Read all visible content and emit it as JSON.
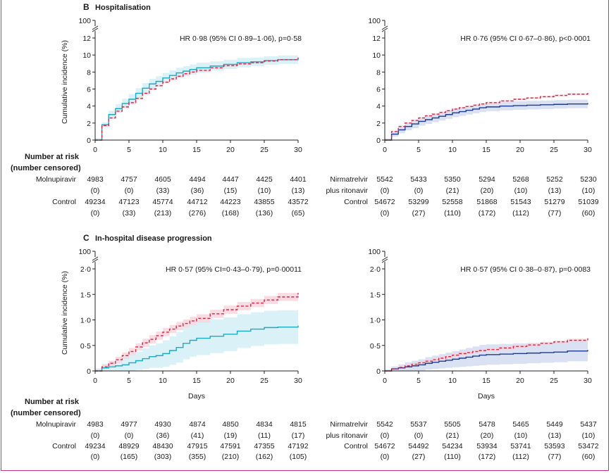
{
  "colors": {
    "molnupiravir": "#1aaac4",
    "nirmatrelvir": "#1f3b8f",
    "control": "#d42a45",
    "molnupiravir_band": "#cfedf5",
    "nirmatrelvir_band": "#cfd9ef",
    "control_band": "#f7d2dc",
    "frame": "#c2338a"
  },
  "shared": {
    "ylabel": "Cumulative incidence (%)",
    "xlabel": "Days",
    "risk_title_line1": "Number at risk",
    "risk_title_line2": "(number censored)"
  },
  "chart_data": [
    {
      "id": "B_left",
      "panel_label": "B",
      "panel_title": "Hospitalisation",
      "type": "line",
      "hr_text": "HR 0·98 (95% CI 0·89–1·06), p=0·58",
      "xlim": [
        0,
        30
      ],
      "ylim": [
        0,
        12
      ],
      "x_ticks": [
        "0",
        "5",
        "10",
        "15",
        "20",
        "25",
        "30"
      ],
      "y_ticks": [
        "0",
        "2",
        "4",
        "6",
        "8",
        "10",
        "12"
      ],
      "y_break_label": "100",
      "series": [
        {
          "name": "Molnupiravir",
          "style": "solid",
          "color_key": "molnupiravir",
          "x": [
            0,
            1,
            2,
            3,
            4,
            5,
            6,
            7,
            8,
            9,
            10,
            11,
            12,
            13,
            14,
            15,
            17,
            19,
            21,
            23,
            25,
            27,
            30
          ],
          "y": [
            0,
            1.8,
            3.0,
            3.7,
            4.3,
            4.8,
            5.5,
            6.1,
            6.6,
            6.9,
            7.3,
            7.6,
            7.9,
            8.1,
            8.3,
            8.5,
            8.7,
            8.9,
            9.1,
            9.2,
            9.35,
            9.45,
            9.6
          ],
          "band": [
            0.25,
            0.3,
            0.45,
            0.5,
            0.55,
            0.6,
            0.6,
            0.6,
            0.6,
            0.6,
            0.6,
            0.6,
            0.6,
            0.6,
            0.6,
            0.6,
            0.55,
            0.55,
            0.55,
            0.5,
            0.5,
            0.5,
            0.5
          ]
        },
        {
          "name": "Control",
          "style": "dashed",
          "color_key": "control",
          "x": [
            0,
            1,
            2,
            3,
            4,
            5,
            6,
            7,
            8,
            9,
            10,
            11,
            12,
            13,
            14,
            15,
            17,
            19,
            21,
            23,
            25,
            27,
            30
          ],
          "y": [
            0,
            1.7,
            2.6,
            3.4,
            3.9,
            4.4,
            4.9,
            5.5,
            6.0,
            6.4,
            6.8,
            7.2,
            7.5,
            7.8,
            8.0,
            8.2,
            8.5,
            8.75,
            8.95,
            9.1,
            9.3,
            9.45,
            9.7
          ],
          "band": [
            0.1,
            0.1,
            0.12,
            0.12,
            0.12,
            0.12,
            0.12,
            0.12,
            0.12,
            0.12,
            0.12,
            0.12,
            0.12,
            0.12,
            0.12,
            0.12,
            0.12,
            0.12,
            0.12,
            0.12,
            0.12,
            0.12,
            0.12
          ]
        }
      ],
      "risk_rows": [
        {
          "label": "Molnupiravir",
          "counts": [
            "4983",
            "4757",
            "4605",
            "4494",
            "4447",
            "4425",
            "4401"
          ],
          "censored": [
            "(0)",
            "(0)",
            "(33)",
            "(36)",
            "(15)",
            "(10)",
            "(13)"
          ]
        },
        {
          "label": "Control",
          "counts": [
            "49234",
            "47123",
            "45774",
            "44712",
            "44223",
            "43855",
            "43572"
          ],
          "censored": [
            "(0)",
            "(33)",
            "(213)",
            "(276)",
            "(168)",
            "(136)",
            "(65)"
          ]
        }
      ]
    },
    {
      "id": "B_right",
      "panel_label": "",
      "panel_title": "",
      "type": "line",
      "hr_text": "HR 0·76 (95% CI 0·67–0·86), p<0·0001",
      "xlim": [
        0,
        30
      ],
      "ylim": [
        0,
        12
      ],
      "x_ticks": [
        "0",
        "5",
        "10",
        "15",
        "20",
        "25",
        "30"
      ],
      "y_ticks": [
        "0",
        "2",
        "4",
        "6",
        "8",
        "10",
        "12"
      ],
      "y_break_label": "100",
      "series": [
        {
          "name": "Nirmatrelvir plus ritonavir",
          "style": "solid",
          "color_key": "nirmatrelvir",
          "x": [
            0,
            1,
            2,
            3,
            4,
            5,
            6,
            7,
            8,
            9,
            10,
            11,
            12,
            13,
            14,
            15,
            17,
            19,
            21,
            23,
            25,
            27,
            30
          ],
          "y": [
            0,
            0.7,
            1.2,
            1.6,
            1.9,
            2.2,
            2.4,
            2.6,
            2.8,
            3.0,
            3.2,
            3.35,
            3.5,
            3.65,
            3.8,
            3.9,
            4.0,
            4.05,
            4.1,
            4.15,
            4.2,
            4.25,
            4.35
          ],
          "band": [
            0.2,
            0.3,
            0.4,
            0.45,
            0.5,
            0.5,
            0.5,
            0.5,
            0.5,
            0.5,
            0.5,
            0.5,
            0.5,
            0.5,
            0.5,
            0.5,
            0.5,
            0.5,
            0.5,
            0.5,
            0.5,
            0.5,
            0.5
          ]
        },
        {
          "name": "Control",
          "style": "dashed",
          "color_key": "control",
          "x": [
            0,
            1,
            2,
            3,
            4,
            5,
            6,
            7,
            8,
            9,
            10,
            11,
            12,
            13,
            14,
            15,
            17,
            19,
            21,
            23,
            25,
            27,
            30
          ],
          "y": [
            0,
            1.0,
            1.6,
            2.0,
            2.3,
            2.6,
            2.85,
            3.05,
            3.25,
            3.45,
            3.65,
            3.8,
            3.95,
            4.1,
            4.25,
            4.4,
            4.6,
            4.8,
            4.95,
            5.1,
            5.25,
            5.4,
            5.7
          ],
          "band": [
            0.08,
            0.08,
            0.1,
            0.1,
            0.1,
            0.1,
            0.1,
            0.1,
            0.1,
            0.1,
            0.1,
            0.1,
            0.1,
            0.1,
            0.1,
            0.1,
            0.1,
            0.1,
            0.1,
            0.1,
            0.1,
            0.1,
            0.1
          ]
        }
      ],
      "risk_rows": [
        {
          "label": "Nirmatrelvir",
          "label2": "plus ritonavir",
          "counts": [
            "5542",
            "5433",
            "5350",
            "5294",
            "5268",
            "5252",
            "5230"
          ],
          "censored": [
            "(0)",
            "(0)",
            "(21)",
            "(20)",
            "(10)",
            "(13)",
            "(10)"
          ]
        },
        {
          "label": "Control",
          "counts": [
            "54672",
            "53299",
            "52558",
            "51868",
            "51543",
            "51279",
            "51039"
          ],
          "censored": [
            "(0)",
            "(27)",
            "(110)",
            "(172)",
            "(112)",
            "(77)",
            "(60)"
          ]
        }
      ]
    },
    {
      "id": "C_left",
      "panel_label": "C",
      "panel_title": "In-hospital disease progression",
      "type": "line",
      "hr_text": "HR 0·57 (95% CI=0·43–0·79), p=0·00011",
      "xlim": [
        0,
        30
      ],
      "ylim": [
        0,
        2.0
      ],
      "x_ticks": [
        "0",
        "5",
        "10",
        "15",
        "20",
        "25",
        "30"
      ],
      "y_ticks": [
        "0",
        "0·5",
        "1·0",
        "1·5",
        "2·0"
      ],
      "y_break_label": "100",
      "series": [
        {
          "name": "Molnupiravir",
          "style": "solid",
          "color_key": "molnupiravir",
          "x": [
            0,
            1,
            2,
            3,
            4,
            5,
            6,
            7,
            8,
            9,
            10,
            11,
            12,
            13,
            14,
            15,
            17,
            19,
            21,
            23,
            25,
            27,
            30
          ],
          "y": [
            0,
            0.06,
            0.08,
            0.1,
            0.12,
            0.16,
            0.2,
            0.24,
            0.28,
            0.3,
            0.34,
            0.4,
            0.46,
            0.54,
            0.6,
            0.64,
            0.68,
            0.72,
            0.78,
            0.82,
            0.85,
            0.86,
            0.89
          ],
          "band": [
            0.05,
            0.08,
            0.1,
            0.12,
            0.14,
            0.16,
            0.18,
            0.2,
            0.22,
            0.24,
            0.26,
            0.28,
            0.3,
            0.31,
            0.32,
            0.33,
            0.33,
            0.33,
            0.33,
            0.33,
            0.33,
            0.33,
            0.33
          ]
        },
        {
          "name": "Control",
          "style": "dashed",
          "color_key": "control",
          "x": [
            0,
            1,
            2,
            3,
            4,
            5,
            6,
            7,
            8,
            9,
            10,
            11,
            12,
            13,
            14,
            15,
            17,
            19,
            21,
            23,
            25,
            27,
            30
          ],
          "y": [
            0,
            0.08,
            0.15,
            0.22,
            0.3,
            0.38,
            0.47,
            0.55,
            0.62,
            0.69,
            0.76,
            0.82,
            0.88,
            0.93,
            0.98,
            1.03,
            1.12,
            1.2,
            1.27,
            1.33,
            1.39,
            1.45,
            1.53
          ],
          "band": [
            0.03,
            0.04,
            0.05,
            0.06,
            0.06,
            0.07,
            0.07,
            0.08,
            0.08,
            0.08,
            0.08,
            0.08,
            0.08,
            0.08,
            0.08,
            0.08,
            0.08,
            0.08,
            0.08,
            0.08,
            0.08,
            0.08,
            0.08
          ]
        }
      ],
      "risk_rows": [
        {
          "label": "Molnupiravir",
          "counts": [
            "4983",
            "4977",
            "4930",
            "4874",
            "4850",
            "4834",
            "4815"
          ],
          "censored": [
            "(0)",
            "(0)",
            "(36)",
            "(41)",
            "(19)",
            "(11)",
            "(17)"
          ]
        },
        {
          "label": "Control",
          "counts": [
            "49234",
            "48929",
            "48430",
            "47915",
            "47591",
            "47355",
            "47192"
          ],
          "censored": [
            "(0)",
            "(165)",
            "(303)",
            "(355)",
            "(210)",
            "(162)",
            "(105)"
          ]
        }
      ]
    },
    {
      "id": "C_right",
      "panel_label": "",
      "panel_title": "",
      "type": "line",
      "hr_text": "HR 0·57 (95% CI 0·38–0·87), p=0·0083",
      "xlim": [
        0,
        30
      ],
      "ylim": [
        0,
        2.0
      ],
      "x_ticks": [
        "0",
        "5",
        "10",
        "15",
        "20",
        "25",
        "30"
      ],
      "y_ticks": [
        "0",
        "0·5",
        "1·0",
        "1·5",
        "2·0"
      ],
      "y_break_label": "100",
      "series": [
        {
          "name": "Nirmatrelvir plus ritonavir",
          "style": "solid",
          "color_key": "nirmatrelvir",
          "x": [
            0,
            1,
            2,
            3,
            4,
            5,
            6,
            7,
            8,
            9,
            10,
            11,
            12,
            13,
            14,
            15,
            17,
            19,
            21,
            23,
            25,
            27,
            30
          ],
          "y": [
            0,
            0.04,
            0.06,
            0.08,
            0.1,
            0.12,
            0.15,
            0.17,
            0.19,
            0.21,
            0.23,
            0.25,
            0.27,
            0.29,
            0.31,
            0.32,
            0.33,
            0.34,
            0.35,
            0.36,
            0.37,
            0.39,
            0.41
          ],
          "band": [
            0.03,
            0.05,
            0.07,
            0.09,
            0.1,
            0.11,
            0.12,
            0.13,
            0.14,
            0.15,
            0.16,
            0.17,
            0.18,
            0.19,
            0.2,
            0.2,
            0.2,
            0.2,
            0.2,
            0.2,
            0.2,
            0.2,
            0.2
          ]
        },
        {
          "name": "Control",
          "style": "dashed",
          "color_key": "control",
          "x": [
            0,
            1,
            2,
            3,
            4,
            5,
            6,
            7,
            8,
            9,
            10,
            11,
            12,
            13,
            14,
            15,
            17,
            19,
            21,
            23,
            25,
            27,
            30
          ],
          "y": [
            0,
            0.04,
            0.07,
            0.1,
            0.13,
            0.16,
            0.19,
            0.22,
            0.25,
            0.28,
            0.31,
            0.34,
            0.36,
            0.38,
            0.4,
            0.42,
            0.45,
            0.48,
            0.51,
            0.54,
            0.57,
            0.6,
            0.64
          ],
          "band": [
            0.02,
            0.02,
            0.03,
            0.03,
            0.03,
            0.03,
            0.03,
            0.03,
            0.03,
            0.03,
            0.03,
            0.03,
            0.03,
            0.03,
            0.03,
            0.03,
            0.03,
            0.03,
            0.03,
            0.03,
            0.03,
            0.03,
            0.03
          ]
        }
      ],
      "risk_rows": [
        {
          "label": "Nirmatrelvir",
          "label2": "plus ritonavir",
          "counts": [
            "5542",
            "5537",
            "5505",
            "5478",
            "5465",
            "5449",
            "5437"
          ],
          "censored": [
            "(0)",
            "(0)",
            "(21)",
            "(20)",
            "(10)",
            "(13)",
            "(10)"
          ]
        },
        {
          "label": "Control",
          "counts": [
            "54672",
            "54492",
            "54234",
            "53934",
            "53741",
            "53593",
            "53472"
          ],
          "censored": [
            "(0)",
            "(27)",
            "(110)",
            "(172)",
            "(112)",
            "(77)",
            "(60)"
          ]
        }
      ]
    }
  ]
}
